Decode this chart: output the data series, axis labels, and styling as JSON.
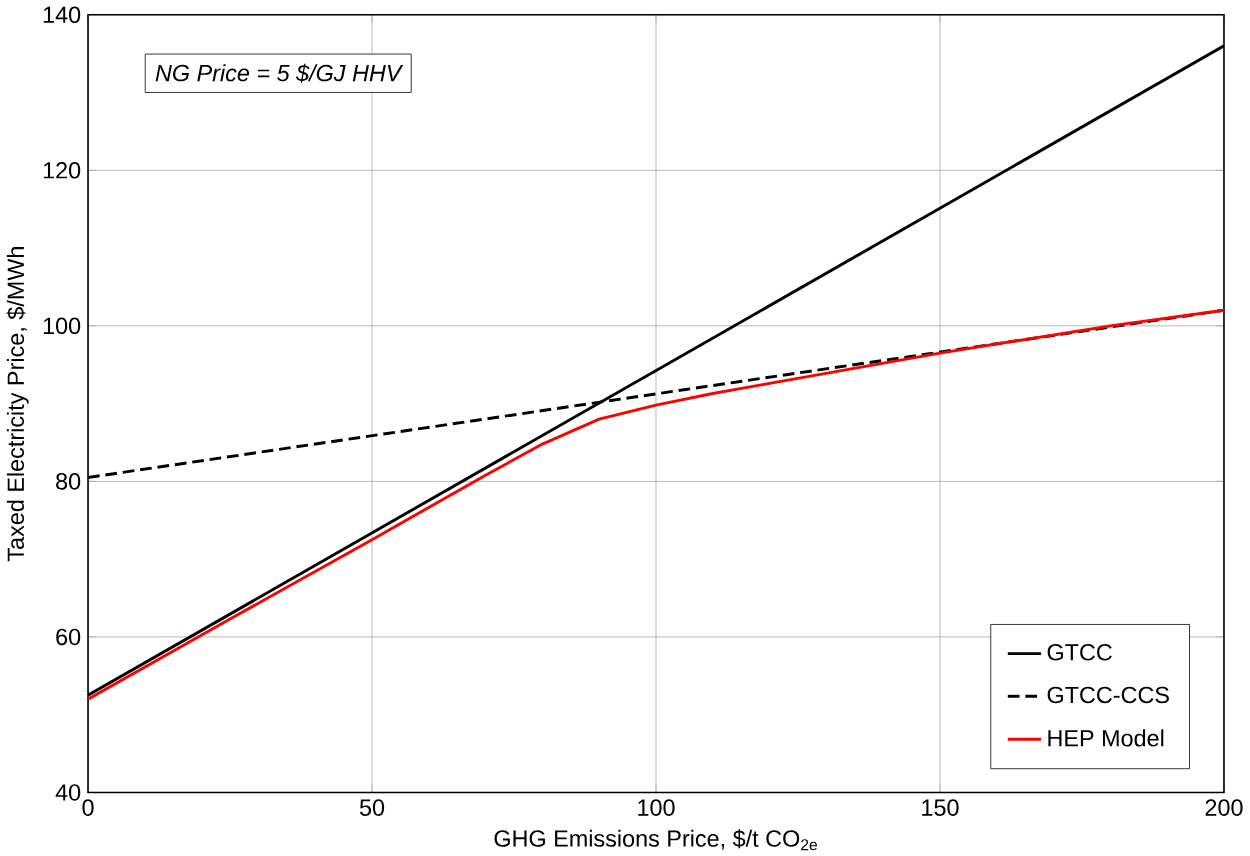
{
  "chart_data": {
    "type": "line",
    "xlabel": "GHG Emissions Price, $/t CO$_{2e}$",
    "ylabel": "Taxed Electricity Price, $/MWh",
    "annotations": [
      "NG Price = 5 $/GJ HHV"
    ],
    "xlim": [
      0,
      200
    ],
    "ylim": [
      40,
      140
    ],
    "xticks": [
      0,
      50,
      100,
      150,
      200
    ],
    "yticks": [
      40,
      60,
      80,
      100,
      120,
      140
    ],
    "grid": true,
    "legend": "bottom right",
    "marker": "none",
    "series": [
      {
        "name": "GTCC",
        "color": "#000000",
        "line_style": "solid",
        "x": [
          0,
          200
        ],
        "values": [
          52.5,
          136
        ]
      },
      {
        "name": "GTCC-CCS",
        "color": "#000000",
        "line_style": "dashed",
        "x": [
          0,
          200
        ],
        "values": [
          80.5,
          102
        ]
      },
      {
        "name": "HEP Model",
        "color": "#ff0000",
        "line_style": "solid",
        "x": [
          0,
          25,
          50,
          70,
          80,
          90,
          100,
          110,
          120,
          150,
          180,
          200
        ],
        "values": [
          52,
          62.3,
          72.5,
          80.8,
          84.8,
          88,
          89.8,
          91.3,
          92.6,
          96.5,
          100,
          102
        ]
      }
    ]
  }
}
